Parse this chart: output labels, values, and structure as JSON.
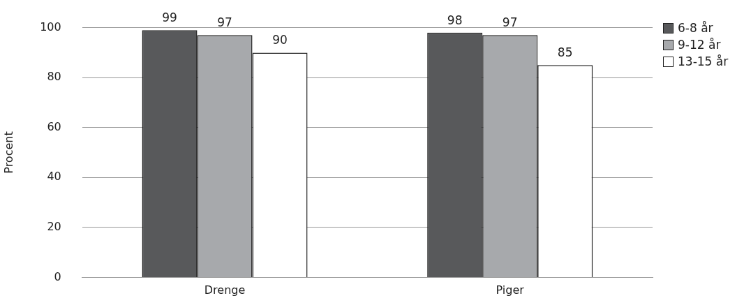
{
  "chart_data": {
    "type": "bar",
    "ylabel": "Procent",
    "categories": [
      "Drenge",
      "Piger"
    ],
    "series": [
      {
        "name": "6-8 år",
        "color": "#58595b",
        "values": [
          99,
          98
        ]
      },
      {
        "name": "9-12 år",
        "color": "#a7a9ac",
        "values": [
          97,
          97
        ]
      },
      {
        "name": "13-15 år",
        "color": "#ffffff",
        "values": [
          90,
          85
        ]
      }
    ],
    "ylim": [
      0,
      100
    ],
    "yticks": [
      0,
      20,
      40,
      60,
      80,
      100
    ],
    "grid": "y",
    "legend": "top right",
    "data_labels": true
  }
}
